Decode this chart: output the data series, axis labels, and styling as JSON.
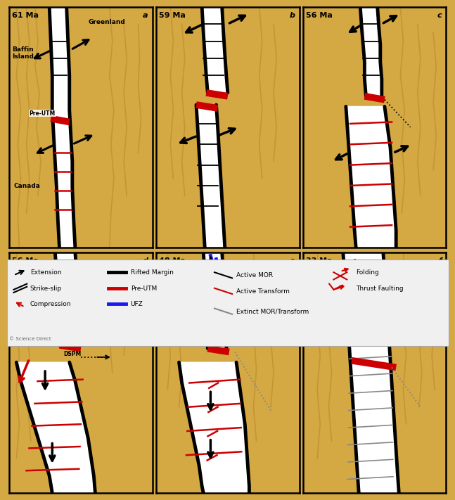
{
  "background_color": "#D4A843",
  "sandy": "#D4A843",
  "contour_color": "#C49535",
  "panel_bg": "#D4A843",
  "border_color": "#000000",
  "white": "#ffffff",
  "black": "#000000",
  "red": "#cc0000",
  "blue": "#1a1aee",
  "gray": "#888888",
  "titles": [
    "61 Ma",
    "59 Ma",
    "56 Ma",
    "56 Ma",
    "48 Ma",
    "33 Ma"
  ],
  "letters": [
    "a",
    "b",
    "c",
    "d",
    "e",
    "f"
  ]
}
